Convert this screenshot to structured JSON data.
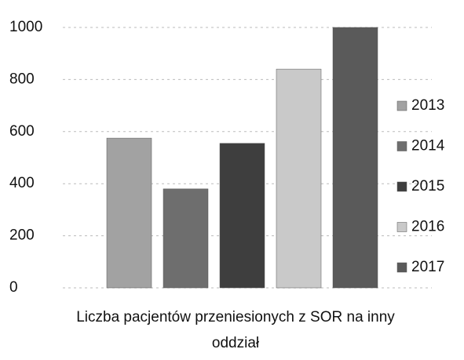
{
  "chart_data": {
    "type": "bar",
    "categories": [
      "Liczba pacjentów przeniesionych z SOR na inny oddział"
    ],
    "series": [
      {
        "name": "2013",
        "color": "#a2a2a2",
        "values": [
          575
        ]
      },
      {
        "name": "2014",
        "color": "#6e6e6e",
        "values": [
          380
        ]
      },
      {
        "name": "2015",
        "color": "#3e3e3e",
        "values": [
          555
        ]
      },
      {
        "name": "2016",
        "color": "#c9c9c9",
        "values": [
          840
        ]
      },
      {
        "name": "2017",
        "color": "#5a5a5a",
        "values": [
          1000
        ]
      }
    ],
    "ylim": [
      0,
      1000
    ],
    "yticks": [
      0,
      200,
      400,
      600,
      800,
      1000
    ],
    "grid": true,
    "legend": "right"
  }
}
